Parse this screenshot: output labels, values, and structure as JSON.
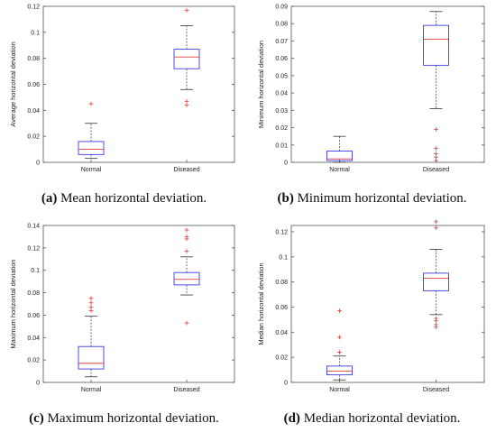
{
  "figure": {
    "captions": [
      {
        "letter": "(a)",
        "text": "Mean horizontal deviation."
      },
      {
        "letter": "(b)",
        "text": "Minimum horizontal deviation."
      },
      {
        "letter": "(c)",
        "text": "Maximum horizontal deviation."
      },
      {
        "letter": "(d)",
        "text": "Median horizontal deviation."
      }
    ]
  },
  "colors": {
    "box": "#3a3ae6",
    "median": "#e33b3b",
    "outlier": "#e33b3b",
    "whisker": "#333333",
    "axis": "#555555"
  },
  "chart_data": [
    {
      "type": "boxplot",
      "title": "",
      "xlabel": "",
      "ylabel": "Average horizontal deviation",
      "categories": [
        "Normal",
        "Diseased"
      ],
      "ylim": [
        0,
        0.12
      ],
      "yticks": [
        0,
        0.02,
        0.04,
        0.06,
        0.08,
        0.1,
        0.12
      ],
      "ytick_labels": [
        "0",
        "0.02",
        "0.04",
        "0.06",
        "0.08",
        "0.1",
        "0.12"
      ],
      "boxes": [
        {
          "category": "Normal",
          "whisker_low": 0.003,
          "q1": 0.006,
          "median": 0.01,
          "q3": 0.016,
          "whisker_high": 0.03,
          "outliers": [
            0.045
          ]
        },
        {
          "category": "Diseased",
          "whisker_low": 0.056,
          "q1": 0.072,
          "median": 0.081,
          "q3": 0.087,
          "whisker_high": 0.105,
          "outliers": [
            0.117,
            0.047,
            0.044
          ]
        }
      ]
    },
    {
      "type": "boxplot",
      "title": "",
      "xlabel": "",
      "ylabel": "Minimum horizontal deviation",
      "categories": [
        "Normal",
        "Diseased"
      ],
      "ylim": [
        0,
        0.09
      ],
      "yticks": [
        0,
        0.01,
        0.02,
        0.03,
        0.04,
        0.05,
        0.06,
        0.07,
        0.08,
        0.09
      ],
      "ytick_labels": [
        "0",
        "0.01",
        "0.02",
        "0.03",
        "0.04",
        "0.05",
        "0.06",
        "0.07",
        "0.08",
        "0.09"
      ],
      "boxes": [
        {
          "category": "Normal",
          "whisker_low": 0.0,
          "q1": 0.001,
          "median": 0.002,
          "q3": 0.0065,
          "whisker_high": 0.015,
          "outliers": []
        },
        {
          "category": "Diseased",
          "whisker_low": 0.031,
          "q1": 0.056,
          "median": 0.071,
          "q3": 0.079,
          "whisker_high": 0.087,
          "outliers": [
            0.019,
            0.008,
            0.005,
            0.003,
            0.001
          ]
        }
      ]
    },
    {
      "type": "boxplot",
      "title": "",
      "xlabel": "",
      "ylabel": "Maximum horizontal deviation",
      "categories": [
        "Normal",
        "Diseased"
      ],
      "ylim": [
        0,
        0.14
      ],
      "yticks": [
        0,
        0.02,
        0.04,
        0.06,
        0.08,
        0.1,
        0.12,
        0.14
      ],
      "ytick_labels": [
        "0",
        "0.02",
        "0.04",
        "0.06",
        "0.08",
        "0.1",
        "0.12",
        "0.14"
      ],
      "boxes": [
        {
          "category": "Normal",
          "whisker_low": 0.005,
          "q1": 0.012,
          "median": 0.017,
          "q3": 0.032,
          "whisker_high": 0.059,
          "outliers": [
            0.075,
            0.071,
            0.067,
            0.064
          ]
        },
        {
          "category": "Diseased",
          "whisker_low": 0.078,
          "q1": 0.087,
          "median": 0.092,
          "q3": 0.098,
          "whisker_high": 0.112,
          "outliers": [
            0.136,
            0.13,
            0.128,
            0.117,
            0.053
          ]
        }
      ]
    },
    {
      "type": "boxplot",
      "title": "",
      "xlabel": "",
      "ylabel": "Median horizontal deviation",
      "categories": [
        "Normal",
        "Diseased"
      ],
      "ylim": [
        0,
        0.125
      ],
      "yticks": [
        0,
        0.02,
        0.04,
        0.06,
        0.08,
        0.1,
        0.12
      ],
      "ytick_labels": [
        "0",
        "0.02",
        "0.04",
        "0.06",
        "0.08",
        "0.1",
        "0.12"
      ],
      "boxes": [
        {
          "category": "Normal",
          "whisker_low": 0.002,
          "q1": 0.006,
          "median": 0.009,
          "q3": 0.013,
          "whisker_high": 0.021,
          "outliers": [
            0.057,
            0.036,
            0.024
          ]
        },
        {
          "category": "Diseased",
          "whisker_low": 0.054,
          "q1": 0.073,
          "median": 0.083,
          "q3": 0.087,
          "whisker_high": 0.106,
          "outliers": [
            0.128,
            0.123,
            0.051,
            0.049,
            0.046,
            0.044
          ]
        }
      ]
    }
  ]
}
